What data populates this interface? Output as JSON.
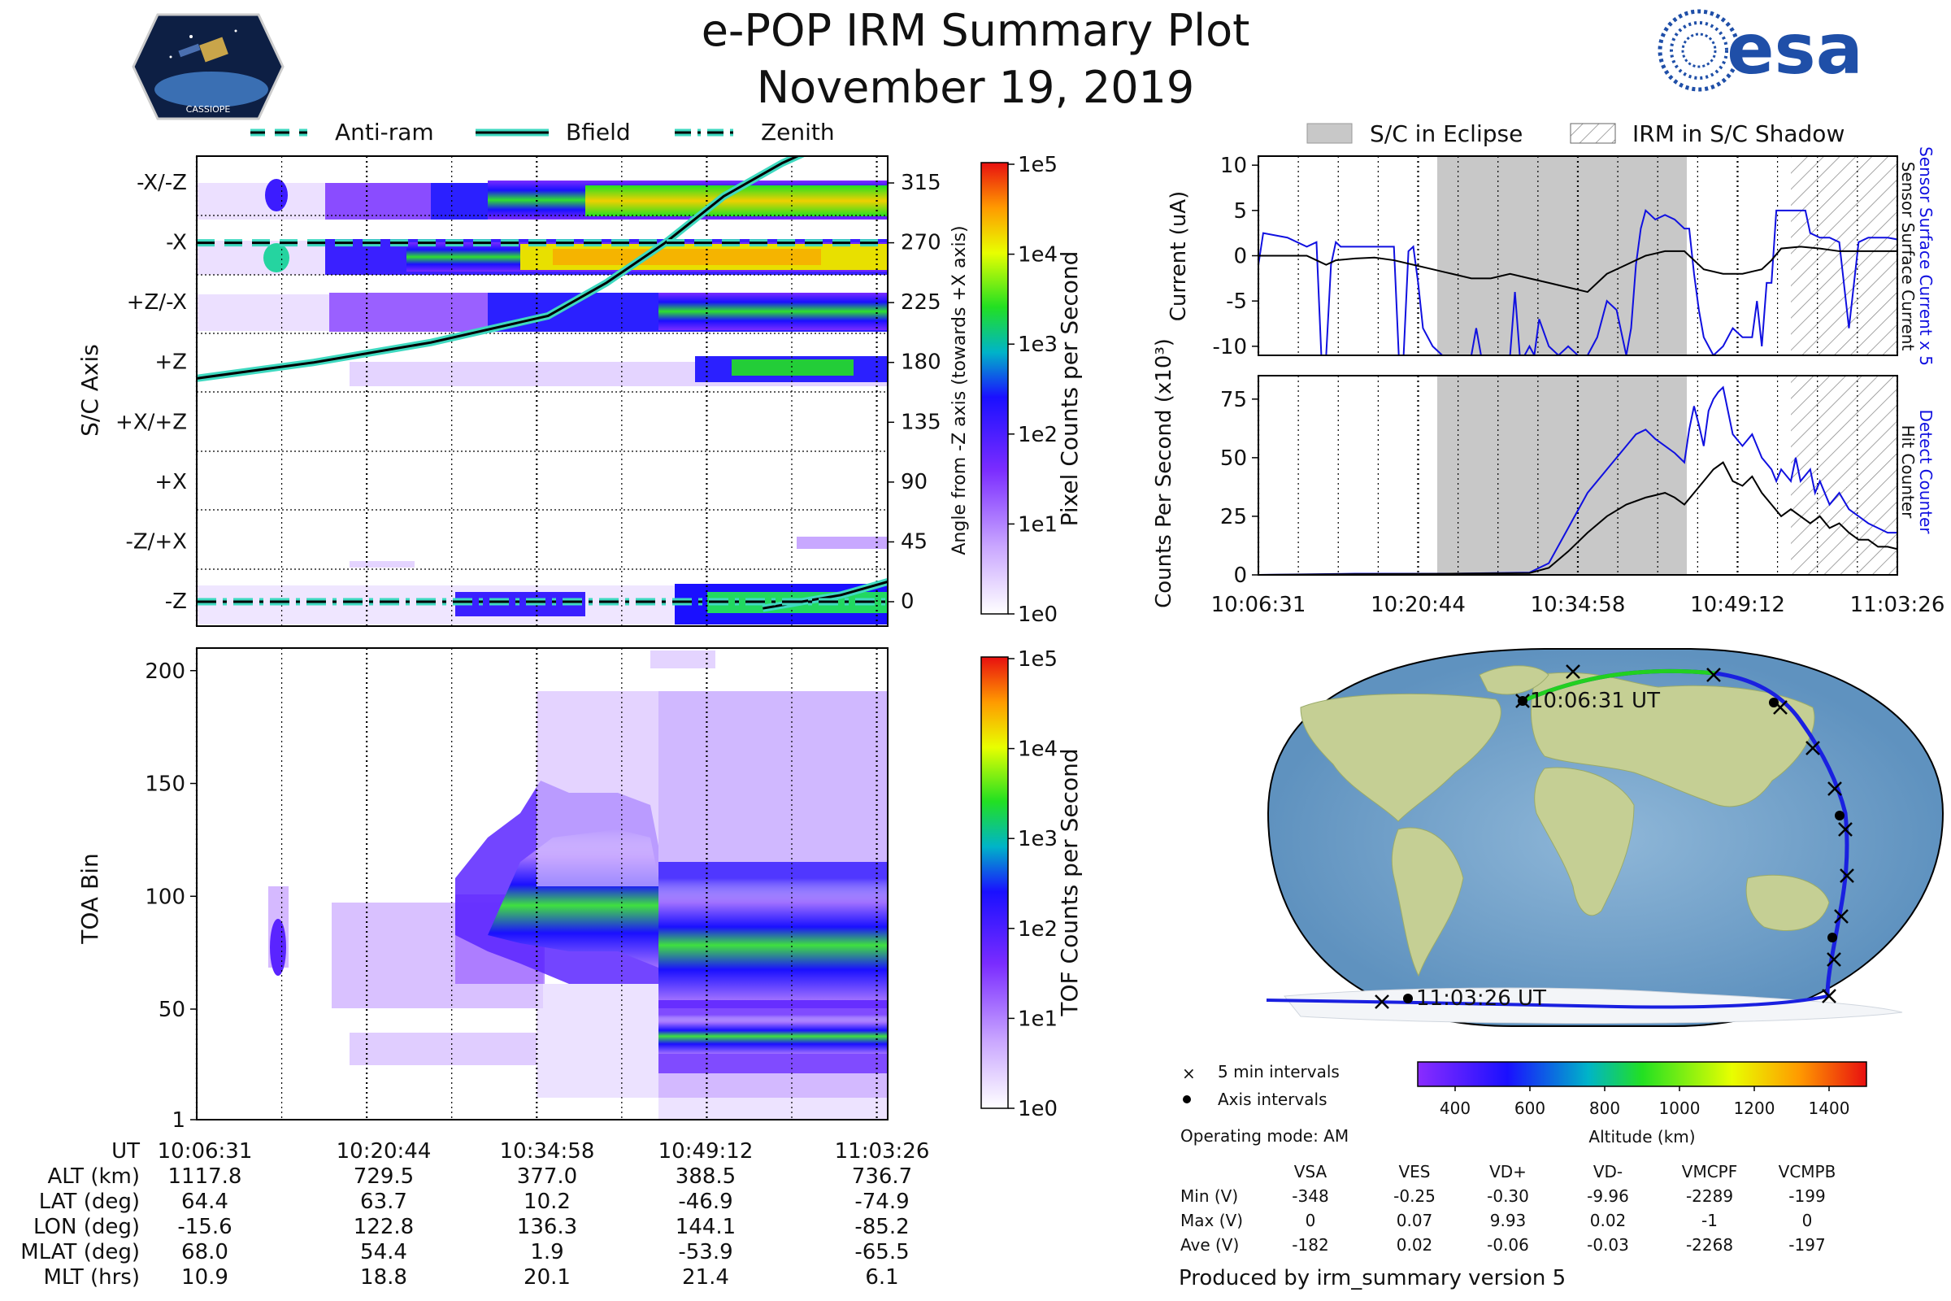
{
  "header": {
    "title": "e-POP IRM Summary Plot",
    "date": "November 19, 2019",
    "logo_left_text": "CASSIOPE",
    "logo_right_text": "esa"
  },
  "colors": {
    "bfield": "#000000",
    "bfield_halo": "#3fd9c0",
    "sensor_current": "#1010e0",
    "black_line": "#000000",
    "eclipse": "#c8c8c8",
    "land": "#b9c98b",
    "ocean": "#7aa7cf"
  },
  "legend_top": {
    "anti_ram": "Anti-ram",
    "bfield": "Bfield",
    "zenith": "Zenith"
  },
  "legend_right": {
    "eclipse": "S/C in Eclipse",
    "shadow": "IRM in S/C Shadow"
  },
  "chart_data": [
    {
      "id": "angle_panel",
      "type": "heatmap",
      "ylabel": "S/C Axis",
      "ylabel_right": "Angle from -Z axis (towards +X axis)",
      "axis_labels": [
        "-X/-Z",
        "-X",
        "+Z/-X",
        "+Z",
        "+X/+Z",
        "+X",
        "-Z/+X",
        "-Z"
      ],
      "right_ticks": [
        "315",
        "270",
        "225",
        "180",
        "135",
        "90",
        "45",
        "0"
      ],
      "colorbar_label": "Pixel Counts per Second",
      "colorbar_ticks": [
        "1e5",
        "1e4",
        "1e3",
        "1e2",
        "1e1",
        "1e0"
      ],
      "bfield_angle_deg": [
        [
          0,
          168
        ],
        [
          60,
          180
        ],
        [
          120,
          195
        ],
        [
          180,
          215
        ],
        [
          210,
          240
        ],
        [
          240,
          270
        ],
        [
          270,
          305
        ],
        [
          300,
          330
        ],
        [
          330,
          350
        ]
      ],
      "bfield_second_angle_deg": [
        [
          290,
          -5
        ],
        [
          310,
          0
        ],
        [
          330,
          5
        ],
        [
          354,
          15
        ]
      ],
      "anti_ram_deg": 270,
      "zenith_deg": 0
    },
    {
      "id": "toa_panel",
      "type": "heatmap",
      "ylabel": "TOA Bin",
      "y_ticks": [
        "200",
        "150",
        "100",
        "50",
        "1"
      ],
      "ylim": [
        1,
        210
      ],
      "colorbar_label": "TOF Counts per Second",
      "colorbar_ticks": [
        "1e5",
        "1e4",
        "1e3",
        "1e2",
        "1e1",
        "1e0"
      ]
    },
    {
      "id": "current_panel",
      "type": "line",
      "ylabel": "Current (uA)",
      "ylabel_right1": "Sensor Surface Current x 5",
      "ylabel_right2": "Sensor Surface Current",
      "y_ticks": [
        "10",
        "5",
        "0",
        "-5",
        "-10"
      ],
      "ylim": [
        -11,
        11
      ],
      "x_minutes": [
        0,
        56.9
      ],
      "series": [
        {
          "name": "Sensor Surface Current x 5",
          "color": "blue",
          "points": [
            [
              0,
              -1
            ],
            [
              0.5,
              2.5
            ],
            [
              3,
              2
            ],
            [
              5,
              1
            ],
            [
              6,
              1.5
            ],
            [
              6.5,
              -11
            ],
            [
              7,
              -11
            ],
            [
              7.5,
              -1
            ],
            [
              8,
              1.5
            ],
            [
              8.5,
              1
            ],
            [
              12,
              1
            ],
            [
              13,
              1
            ],
            [
              14,
              1
            ],
            [
              14.5,
              -11
            ],
            [
              15,
              -11
            ],
            [
              15.5,
              0.5
            ],
            [
              16,
              1
            ],
            [
              16.5,
              -3
            ],
            [
              17,
              -8
            ],
            [
              18,
              -10
            ],
            [
              19,
              -11
            ],
            [
              20,
              -11
            ],
            [
              21,
              -11
            ],
            [
              22,
              -11
            ],
            [
              22.5,
              -8
            ],
            [
              23,
              -11
            ],
            [
              24,
              -11
            ],
            [
              25,
              -11
            ],
            [
              26,
              -11
            ],
            [
              26.5,
              -4
            ],
            [
              27,
              -11
            ],
            [
              27.5,
              -11
            ],
            [
              28,
              -10
            ],
            [
              28.5,
              -11
            ],
            [
              29,
              -7
            ],
            [
              30,
              -10
            ],
            [
              31,
              -11
            ],
            [
              32,
              -10
            ],
            [
              33,
              -11
            ],
            [
              34,
              -11
            ],
            [
              34.5,
              -10
            ],
            [
              35,
              -9
            ],
            [
              36,
              -5
            ],
            [
              37,
              -6
            ],
            [
              38,
              -11
            ],
            [
              38.5,
              -8
            ],
            [
              39,
              -1
            ],
            [
              39.5,
              3
            ],
            [
              40,
              5
            ],
            [
              41,
              4
            ],
            [
              42,
              4.5
            ],
            [
              43,
              4
            ],
            [
              44,
              3
            ],
            [
              44.5,
              3
            ],
            [
              45,
              -2
            ],
            [
              45.5,
              -6
            ],
            [
              46,
              -9
            ],
            [
              46.5,
              -10
            ],
            [
              47,
              -11
            ],
            [
              48,
              -10
            ],
            [
              49,
              -8
            ],
            [
              50,
              -9
            ],
            [
              51,
              -9
            ],
            [
              51.5,
              -5
            ],
            [
              52,
              -10
            ],
            [
              52.5,
              -3
            ],
            [
              53,
              -3
            ],
            [
              53.5,
              5
            ],
            [
              54,
              5
            ],
            [
              55,
              5
            ],
            [
              56,
              5
            ],
            [
              56.5,
              5
            ],
            [
              57,
              2.5
            ],
            [
              58,
              2
            ],
            [
              59,
              2
            ],
            [
              60,
              1.5
            ],
            [
              61,
              -8
            ],
            [
              62,
              1.5
            ],
            [
              63,
              2
            ],
            [
              64,
              2
            ],
            [
              65,
              2
            ],
            [
              66,
              1.8
            ]
          ]
        },
        {
          "name": "Sensor Surface Current",
          "color": "black",
          "points": [
            [
              0,
              0
            ],
            [
              5,
              0
            ],
            [
              6,
              -0.5
            ],
            [
              7,
              -1
            ],
            [
              8,
              -0.5
            ],
            [
              10,
              -0.3
            ],
            [
              12,
              -0.2
            ],
            [
              14,
              -0.5
            ],
            [
              16,
              -1
            ],
            [
              18,
              -1.5
            ],
            [
              20,
              -2
            ],
            [
              22,
              -2.5
            ],
            [
              24,
              -2.5
            ],
            [
              26,
              -2
            ],
            [
              28,
              -2.5
            ],
            [
              30,
              -3
            ],
            [
              32,
              -3.5
            ],
            [
              34,
              -4
            ],
            [
              35,
              -3
            ],
            [
              36,
              -2
            ],
            [
              38,
              -1
            ],
            [
              40,
              0
            ],
            [
              42,
              0.5
            ],
            [
              44,
              0.5
            ],
            [
              45,
              -0.5
            ],
            [
              46,
              -1.5
            ],
            [
              48,
              -2
            ],
            [
              50,
              -2
            ],
            [
              52,
              -1.5
            ],
            [
              53,
              -0.5
            ],
            [
              54,
              0.8
            ],
            [
              56,
              1
            ],
            [
              58,
              0.8
            ],
            [
              60,
              0.5
            ],
            [
              62,
              0.5
            ],
            [
              64,
              0.5
            ],
            [
              66,
              0.5
            ]
          ]
        }
      ]
    },
    {
      "id": "counts_panel",
      "type": "line",
      "ylabel": "Counts Per Second (x10³)",
      "ylabel_right1": "Detect Counter",
      "ylabel_right2": "Hit Counter",
      "y_ticks": [
        "75",
        "50",
        "25",
        "0"
      ],
      "ylim": [
        0,
        85
      ],
      "series": [
        {
          "name": "Detect Counter",
          "color": "blue",
          "points": [
            [
              0,
              0
            ],
            [
              10,
              0.5
            ],
            [
              20,
              0.5
            ],
            [
              28,
              1
            ],
            [
              30,
              5
            ],
            [
              32,
              20
            ],
            [
              34,
              35
            ],
            [
              36,
              45
            ],
            [
              37,
              50
            ],
            [
              38,
              55
            ],
            [
              39,
              60
            ],
            [
              40,
              62
            ],
            [
              41,
              58
            ],
            [
              42,
              55
            ],
            [
              43,
              52
            ],
            [
              44,
              48
            ],
            [
              44.5,
              62
            ],
            [
              45,
              72
            ],
            [
              45.5,
              64
            ],
            [
              46,
              55
            ],
            [
              46.5,
              70
            ],
            [
              47,
              75
            ],
            [
              47.5,
              78
            ],
            [
              48,
              80
            ],
            [
              48.5,
              70
            ],
            [
              49,
              60
            ],
            [
              50,
              55
            ],
            [
              51,
              60
            ],
            [
              52,
              50
            ],
            [
              53,
              45
            ],
            [
              53.5,
              40
            ],
            [
              54,
              45
            ],
            [
              55,
              40
            ],
            [
              55.5,
              50
            ],
            [
              56,
              40
            ],
            [
              57,
              45
            ],
            [
              57.5,
              35
            ],
            [
              58,
              40
            ],
            [
              59,
              30
            ],
            [
              60,
              35
            ],
            [
              61,
              28
            ],
            [
              62,
              25
            ],
            [
              63,
              22
            ],
            [
              64,
              20
            ],
            [
              65,
              18
            ],
            [
              66,
              18
            ]
          ]
        },
        {
          "name": "Hit Counter",
          "color": "black",
          "points": [
            [
              0,
              0
            ],
            [
              10,
              0.3
            ],
            [
              20,
              0.5
            ],
            [
              28,
              0.8
            ],
            [
              30,
              3
            ],
            [
              32,
              10
            ],
            [
              34,
              18
            ],
            [
              36,
              25
            ],
            [
              38,
              30
            ],
            [
              40,
              33
            ],
            [
              42,
              35
            ],
            [
              43,
              33
            ],
            [
              44,
              30
            ],
            [
              45,
              35
            ],
            [
              46,
              40
            ],
            [
              47,
              45
            ],
            [
              48,
              48
            ],
            [
              49,
              40
            ],
            [
              50,
              38
            ],
            [
              51,
              42
            ],
            [
              52,
              35
            ],
            [
              53,
              30
            ],
            [
              54,
              25
            ],
            [
              55,
              28
            ],
            [
              56,
              25
            ],
            [
              57,
              22
            ],
            [
              58,
              25
            ],
            [
              59,
              20
            ],
            [
              60,
              22
            ],
            [
              61,
              18
            ],
            [
              62,
              15
            ],
            [
              63,
              15
            ],
            [
              64,
              12
            ],
            [
              65,
              12
            ],
            [
              66,
              11
            ]
          ]
        }
      ]
    },
    {
      "id": "map_panel",
      "type": "scatter",
      "start_label": "10:06:31 UT",
      "end_label": "11:03:26 UT",
      "legend_5min": "5 min intervals",
      "legend_axis": "Axis intervals",
      "colorbar_label": "Altitude (km)",
      "colorbar_ticks": [
        "400",
        "600",
        "800",
        "1000",
        "1200",
        "1400"
      ]
    }
  ],
  "time_axis": {
    "labels": [
      "10:06:31",
      "10:20:44",
      "10:34:58",
      "10:49:12",
      "11:03:26"
    ]
  },
  "orbit_table": {
    "row_labels": [
      "UT",
      "ALT (km)",
      "LAT (deg)",
      "LON (deg)",
      "MLAT (deg)",
      "MLT (hrs)"
    ],
    "rows": [
      [
        "10:06:31",
        "10:20:44",
        "10:34:58",
        "10:49:12",
        "11:03:26"
      ],
      [
        "1117.8",
        "729.5",
        "377.0",
        "388.5",
        "736.7"
      ],
      [
        "64.4",
        "63.7",
        "10.2",
        "-46.9",
        "-74.9"
      ],
      [
        "-15.6",
        "122.8",
        "136.3",
        "144.1",
        "-85.2"
      ],
      [
        "68.0",
        "54.4",
        "1.9",
        "-53.9",
        "-65.5"
      ],
      [
        "10.9",
        "18.8",
        "20.1",
        "21.4",
        "6.1"
      ]
    ]
  },
  "voltage_table": {
    "operating_mode": "Operating mode: AM",
    "headers": [
      "VSA",
      "VES",
      "VD+",
      "VD-",
      "VMCPF",
      "VCMPB"
    ],
    "row_labels": [
      "Min (V)",
      "Max (V)",
      "Ave (V)"
    ],
    "rows": [
      [
        "-348",
        "-0.25",
        "-0.30",
        "-9.96",
        "-2289",
        "-199"
      ],
      [
        "0",
        "0.07",
        "9.93",
        "0.02",
        "-1",
        "0"
      ],
      [
        "-182",
        "0.02",
        "-0.06",
        "-0.03",
        "-2268",
        "-197"
      ]
    ]
  },
  "footer": {
    "produced_by": "Produced by irm_summary version 5"
  }
}
